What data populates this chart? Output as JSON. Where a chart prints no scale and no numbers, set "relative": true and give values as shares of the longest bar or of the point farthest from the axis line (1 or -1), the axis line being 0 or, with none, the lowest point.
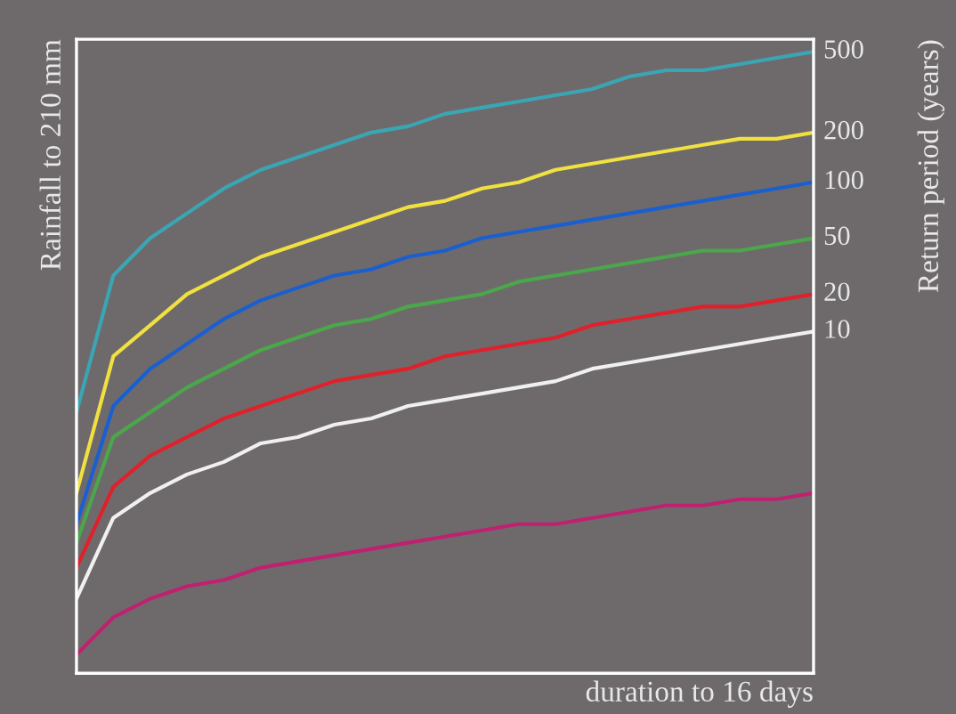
{
  "chart_data": {
    "type": "line",
    "relative": true,
    "tick_labels": false,
    "xlabel": "duration to 16 days",
    "ylabel": "Rainfall to 210 mm",
    "y2label": "Return period (years)",
    "categories": [
      null,
      null,
      null,
      null,
      null,
      null,
      null,
      null,
      null,
      null,
      null,
      null,
      null,
      null,
      null,
      null,
      null,
      null,
      null,
      null,
      null
    ],
    "series": [
      {
        "name": "500",
        "color": "#3aa6b4",
        "values": [
          0.42,
          0.64,
          0.7,
          0.74,
          0.78,
          0.81,
          0.83,
          0.85,
          0.87,
          0.88,
          0.9,
          0.91,
          0.92,
          0.93,
          0.94,
          0.96,
          0.97,
          0.97,
          0.98,
          0.99,
          1
        ]
      },
      {
        "name": "200",
        "color": "#f0e040",
        "values": [
          0.29,
          0.51,
          0.56,
          0.61,
          0.64,
          0.67,
          0.69,
          0.71,
          0.73,
          0.75,
          0.76,
          0.78,
          0.79,
          0.81,
          0.82,
          0.83,
          0.84,
          0.85,
          0.86,
          0.86,
          0.87
        ]
      },
      {
        "name": "100",
        "color": "#1a5fd0",
        "values": [
          0.24,
          0.43,
          0.49,
          0.53,
          0.57,
          0.6,
          0.62,
          0.64,
          0.65,
          0.67,
          0.68,
          0.7,
          0.71,
          0.72,
          0.73,
          0.74,
          0.75,
          0.76,
          0.77,
          0.78,
          0.79
        ]
      },
      {
        "name": "50",
        "color": "#4aa84a",
        "values": [
          0.21,
          0.38,
          0.42,
          0.46,
          0.49,
          0.52,
          0.54,
          0.56,
          0.57,
          0.59,
          0.6,
          0.61,
          0.63,
          0.64,
          0.65,
          0.66,
          0.67,
          0.68,
          0.68,
          0.69,
          0.7
        ]
      },
      {
        "name": "20",
        "color": "#e0202a",
        "values": [
          0.17,
          0.3,
          0.35,
          0.38,
          0.41,
          0.43,
          0.45,
          0.47,
          0.48,
          0.49,
          0.51,
          0.52,
          0.53,
          0.54,
          0.56,
          0.57,
          0.58,
          0.59,
          0.59,
          0.6,
          0.61
        ]
      },
      {
        "name": "10",
        "color": "#f0f0f0",
        "values": [
          0.12,
          0.25,
          0.29,
          0.32,
          0.34,
          0.37,
          0.38,
          0.4,
          0.41,
          0.43,
          0.44,
          0.45,
          0.46,
          0.47,
          0.49,
          0.5,
          0.51,
          0.52,
          0.53,
          0.54,
          0.55
        ]
      },
      {
        "color": "#c02070",
        "values": [
          0.03,
          0.09,
          0.12,
          0.14,
          0.15,
          0.17,
          0.18,
          0.19,
          0.2,
          0.21,
          0.22,
          0.23,
          0.24,
          0.24,
          0.25,
          0.26,
          0.27,
          0.27,
          0.28,
          0.28,
          0.29
        ]
      }
    ]
  }
}
